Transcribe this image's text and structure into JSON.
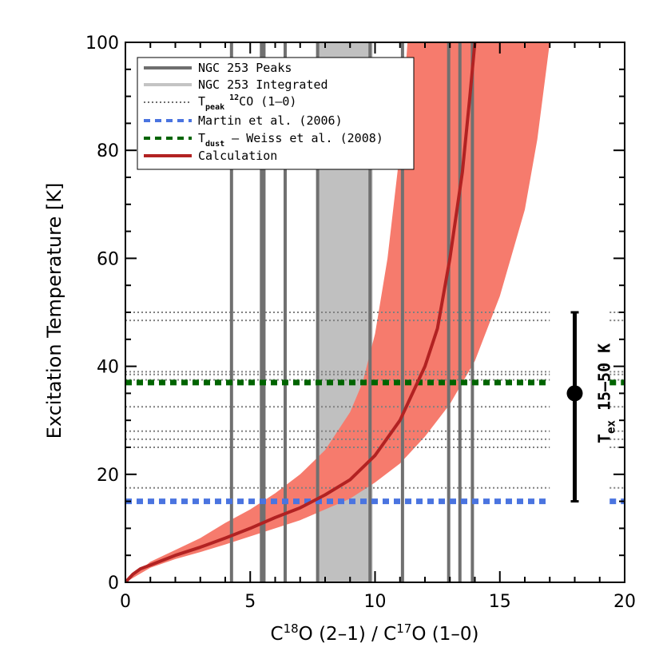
{
  "chart_data": {
    "type": "line",
    "xlabel": "C¹⁸O (2–1) / C¹⁷O (1–0)",
    "ylabel": "Excitation Temperature [K]",
    "xlim": [
      0,
      20
    ],
    "ylim": [
      0,
      100
    ],
    "x_ticks": [
      0,
      5,
      10,
      15,
      20
    ],
    "y_ticks": [
      0,
      20,
      40,
      60,
      80,
      100
    ],
    "legend": [
      {
        "label": "NGC 253 Peaks",
        "style": "solid",
        "color": "#6e6e6e"
      },
      {
        "label": "NGC 253 Integrated",
        "style": "solid",
        "color": "#c4c4c4"
      },
      {
        "label": "T_peak 12CO (1–0)",
        "style": "dotted",
        "color": "#707070"
      },
      {
        "label": "Martin et al. (2006)",
        "style": "dashed",
        "color": "#4169e1"
      },
      {
        "label": "T_dust – Weiss et al. (2008)",
        "style": "dashed",
        "color": "#006400"
      },
      {
        "label": "Calculation",
        "style": "solid",
        "color": "#b22222"
      }
    ],
    "ngc253_peaks_x": [
      4.25,
      5.45,
      5.55,
      6.4,
      7.7,
      9.8,
      11.1,
      12.95,
      13.4,
      13.9
    ],
    "ngc253_integrated_range": [
      7.7,
      9.9
    ],
    "tpeak_12co_levels": [
      17.5,
      25,
      26.5,
      28,
      32.5,
      37.5,
      38.5,
      39,
      48.5,
      50
    ],
    "martin_2006": 15,
    "tdust_weiss_2008": 37,
    "calculation_curve": [
      [
        0,
        0
      ],
      [
        0.3,
        1.5
      ],
      [
        0.6,
        2.5
      ],
      [
        1,
        3.2
      ],
      [
        2,
        5
      ],
      [
        3,
        6.5
      ],
      [
        4,
        8.2
      ],
      [
        5,
        10
      ],
      [
        6,
        12
      ],
      [
        7,
        13.8
      ],
      [
        8,
        16.2
      ],
      [
        9,
        19
      ],
      [
        10,
        23.5
      ],
      [
        11,
        30
      ],
      [
        12,
        40
      ],
      [
        12.5,
        47
      ],
      [
        13,
        60
      ],
      [
        13.5,
        76
      ],
      [
        13.8,
        90
      ],
      [
        14,
        100
      ]
    ],
    "calculation_band_lower": [
      [
        0,
        0
      ],
      [
        1,
        2.7
      ],
      [
        2,
        4.3
      ],
      [
        3,
        5.6
      ],
      [
        4,
        7
      ],
      [
        5,
        8.5
      ],
      [
        6,
        10
      ],
      [
        7,
        11.5
      ],
      [
        8,
        13.5
      ],
      [
        9,
        15.5
      ],
      [
        10,
        18.5
      ],
      [
        11,
        22
      ],
      [
        12,
        27
      ],
      [
        13,
        33
      ],
      [
        14,
        41
      ],
      [
        15,
        53
      ],
      [
        16,
        69
      ],
      [
        16.5,
        82
      ],
      [
        17,
        100
      ]
    ],
    "calculation_band_upper": [
      [
        0,
        0
      ],
      [
        1,
        3.8
      ],
      [
        2,
        6
      ],
      [
        3,
        8.2
      ],
      [
        4,
        11
      ],
      [
        5,
        13.5
      ],
      [
        6,
        16.5
      ],
      [
        7,
        20
      ],
      [
        8,
        24.5
      ],
      [
        9,
        31.5
      ],
      [
        9.5,
        37
      ],
      [
        10,
        46
      ],
      [
        10.5,
        60
      ],
      [
        11,
        80
      ],
      [
        11.3,
        100
      ]
    ],
    "tex_range": {
      "label": "T",
      "subscript": "ex",
      "suffix": " 15–50 K",
      "x": 18,
      "low": 15,
      "high": 50,
      "center": 35
    }
  },
  "legend_labels": {
    "peaks": "NGC 253 Peaks",
    "integrated": "NGC 253 Integrated",
    "tpeak_main": "T",
    "tpeak_sub": "peak",
    "tpeak_sup": "12",
    "tpeak_rest": "CO (1–0)",
    "martin": "Martin et al. (2006)",
    "tdust_main": "T",
    "tdust_sub": "dust",
    "tdust_rest": " – Weiss et al. (2008)",
    "calc": "Calculation"
  },
  "xlabel_parts": {
    "c1": "C",
    "s1": "18",
    "m1": "O (2–1) / C",
    "s2": "17",
    "m2": "O (1–0)"
  },
  "colors": {
    "band": "#f67b6d",
    "curve": "#b22222",
    "peaks": "#707070",
    "integrated": "#c0c0c0",
    "martin": "#4a74e0",
    "tdust": "#006400",
    "tpeak": "#808080"
  }
}
